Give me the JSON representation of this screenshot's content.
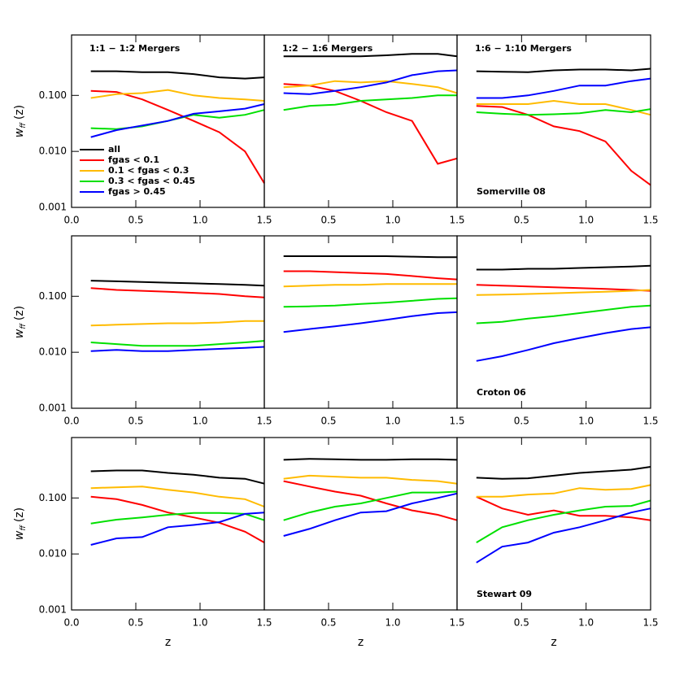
{
  "chart_data": [
    {
      "type": "line",
      "title": "1:1 − 1:2 Mergers",
      "ylabel": {
        "text": "w",
        "subscript": "ff",
        "suffix": "(z)"
      },
      "yscale": "log",
      "xlim": [
        0,
        1.5
      ],
      "ylim": [
        0.001,
        1.2
      ],
      "xticks": [
        {
          "value": 0,
          "label": "0.0"
        },
        0.5,
        {
          "value": 1,
          "label": "1.0"
        },
        1.5
      ],
      "yticks": [
        {
          "value": 0.001,
          "label": "0.001"
        },
        {
          "value": 0.01,
          "label": "0.010"
        },
        {
          "value": 0.1,
          "label": "0.100"
        }
      ],
      "legend": "lower left",
      "x": [
        0.15,
        0.35,
        0.55,
        0.75,
        0.95,
        1.15,
        1.35,
        1.5
      ],
      "series": [
        {
          "name": "all",
          "color": "#000000",
          "values": [
            0.27,
            0.27,
            0.26,
            0.26,
            0.24,
            0.21,
            0.2,
            0.21
          ]
        },
        {
          "name": "fgas < 0.1",
          "color": "#ff0000",
          "values": [
            0.12,
            0.115,
            0.085,
            0.055,
            0.035,
            0.022,
            0.01,
            0.0027
          ]
        },
        {
          "name": "0.1 < fgas < 0.3",
          "color": "#ffbb00",
          "values": [
            0.09,
            0.105,
            0.11,
            0.125,
            0.1,
            0.09,
            0.085,
            0.08
          ]
        },
        {
          "name": "0.3 < fgas < 0.45",
          "color": "#00e000",
          "values": [
            0.026,
            0.025,
            0.028,
            0.035,
            0.045,
            0.04,
            0.045,
            0.055
          ]
        },
        {
          "name": "fgas > 0.45",
          "color": "#0000ff",
          "values": [
            0.018,
            0.024,
            0.029,
            0.035,
            0.047,
            0.052,
            0.058,
            0.07
          ]
        }
      ]
    },
    {
      "type": "line",
      "title": "1:2 − 1:6 Mergers",
      "yscale": "log",
      "xlim": [
        0,
        1.5
      ],
      "ylim": [
        0.001,
        1.2
      ],
      "xticks": [
        0.5,
        {
          "value": 1,
          "label": "1.0"
        },
        1.5
      ],
      "x": [
        0.15,
        0.35,
        0.55,
        0.75,
        0.95,
        1.15,
        1.35,
        1.5
      ],
      "series": [
        {
          "color": "#000000",
          "values": [
            0.5,
            0.5,
            0.5,
            0.5,
            0.52,
            0.55,
            0.55,
            0.5
          ]
        },
        {
          "color": "#ff0000",
          "values": [
            0.16,
            0.15,
            0.12,
            0.08,
            0.05,
            0.035,
            0.006,
            0.0075
          ]
        },
        {
          "color": "#ffbb00",
          "values": [
            0.14,
            0.15,
            0.18,
            0.17,
            0.18,
            0.16,
            0.14,
            0.11
          ]
        },
        {
          "color": "#00e000",
          "values": [
            0.055,
            0.065,
            0.068,
            0.08,
            0.085,
            0.09,
            0.1,
            0.1
          ]
        },
        {
          "color": "#0000ff",
          "values": [
            0.11,
            0.105,
            0.12,
            0.14,
            0.17,
            0.23,
            0.27,
            0.28
          ]
        }
      ]
    },
    {
      "type": "line",
      "title": "1:6 − 1:10 Mergers",
      "annotation": "Somerville 08",
      "yscale": "log",
      "xlim": [
        0,
        1.5
      ],
      "ylim": [
        0.001,
        1.2
      ],
      "xticks": [
        0.5,
        {
          "value": 1,
          "label": "1.0"
        },
        1.5
      ],
      "x": [
        0.15,
        0.35,
        0.55,
        0.75,
        0.95,
        1.15,
        1.35,
        1.5
      ],
      "series": [
        {
          "color": "#000000",
          "values": [
            0.27,
            0.265,
            0.26,
            0.28,
            0.29,
            0.29,
            0.28,
            0.3
          ]
        },
        {
          "color": "#ff0000",
          "values": [
            0.065,
            0.062,
            0.045,
            0.028,
            0.023,
            0.015,
            0.0045,
            0.0025
          ]
        },
        {
          "color": "#ffbb00",
          "values": [
            0.07,
            0.07,
            0.07,
            0.08,
            0.07,
            0.07,
            0.055,
            0.045
          ]
        },
        {
          "color": "#00e000",
          "values": [
            0.05,
            0.047,
            0.045,
            0.046,
            0.048,
            0.055,
            0.05,
            0.057
          ]
        },
        {
          "color": "#0000ff",
          "values": [
            0.09,
            0.09,
            0.1,
            0.12,
            0.15,
            0.15,
            0.18,
            0.2
          ]
        }
      ]
    },
    {
      "type": "line",
      "ylabel": {
        "text": "w",
        "subscript": "ff",
        "suffix": "(z)"
      },
      "yscale": "log",
      "xlim": [
        0,
        1.5
      ],
      "ylim": [
        0.001,
        1.2
      ],
      "xticks": [
        {
          "value": 0,
          "label": "0.0"
        },
        0.5,
        {
          "value": 1,
          "label": "1.0"
        },
        1.5
      ],
      "yticks": [
        {
          "value": 0.001,
          "label": "0.001"
        },
        {
          "value": 0.01,
          "label": "0.010"
        },
        {
          "value": 0.1,
          "label": "0.100"
        }
      ],
      "x": [
        0.15,
        0.35,
        0.55,
        0.75,
        0.95,
        1.15,
        1.35,
        1.5
      ],
      "series": [
        {
          "color": "#000000",
          "values": [
            0.19,
            0.185,
            0.18,
            0.175,
            0.17,
            0.165,
            0.16,
            0.155
          ]
        },
        {
          "color": "#ff0000",
          "values": [
            0.14,
            0.13,
            0.125,
            0.12,
            0.115,
            0.11,
            0.1,
            0.095
          ]
        },
        {
          "color": "#ffbb00",
          "values": [
            0.03,
            0.031,
            0.032,
            0.033,
            0.033,
            0.034,
            0.036,
            0.036
          ]
        },
        {
          "color": "#00e000",
          "values": [
            0.015,
            0.014,
            0.013,
            0.013,
            0.013,
            0.014,
            0.015,
            0.016
          ]
        },
        {
          "color": "#0000ff",
          "values": [
            0.0105,
            0.011,
            0.0105,
            0.0105,
            0.011,
            0.0115,
            0.012,
            0.0125
          ]
        }
      ]
    },
    {
      "type": "line",
      "yscale": "log",
      "xlim": [
        0,
        1.5
      ],
      "ylim": [
        0.001,
        1.2
      ],
      "xticks": [
        0.5,
        {
          "value": 1,
          "label": "1.0"
        },
        1.5
      ],
      "x": [
        0.15,
        0.35,
        0.55,
        0.75,
        0.95,
        1.15,
        1.35,
        1.5
      ],
      "series": [
        {
          "color": "#000000",
          "values": [
            0.52,
            0.52,
            0.52,
            0.52,
            0.52,
            0.51,
            0.5,
            0.5
          ]
        },
        {
          "color": "#ff0000",
          "values": [
            0.28,
            0.28,
            0.27,
            0.26,
            0.25,
            0.23,
            0.21,
            0.2
          ]
        },
        {
          "color": "#ffbb00",
          "values": [
            0.15,
            0.155,
            0.16,
            0.16,
            0.165,
            0.165,
            0.165,
            0.165
          ]
        },
        {
          "color": "#00e000",
          "values": [
            0.065,
            0.066,
            0.068,
            0.073,
            0.077,
            0.083,
            0.09,
            0.092
          ]
        },
        {
          "color": "#0000ff",
          "values": [
            0.023,
            0.026,
            0.029,
            0.033,
            0.038,
            0.044,
            0.05,
            0.052
          ]
        }
      ]
    },
    {
      "type": "line",
      "annotation": "Croton 06",
      "yscale": "log",
      "xlim": [
        0,
        1.5
      ],
      "ylim": [
        0.001,
        1.2
      ],
      "xticks": [
        0.5,
        {
          "value": 1,
          "label": "1.0"
        },
        1.5
      ],
      "x": [
        0.15,
        0.35,
        0.55,
        0.75,
        0.95,
        1.15,
        1.35,
        1.5
      ],
      "series": [
        {
          "color": "#000000",
          "values": [
            0.3,
            0.3,
            0.31,
            0.31,
            0.32,
            0.33,
            0.34,
            0.35
          ]
        },
        {
          "color": "#ff0000",
          "values": [
            0.16,
            0.155,
            0.15,
            0.145,
            0.14,
            0.135,
            0.13,
            0.125
          ]
        },
        {
          "color": "#ffbb00",
          "values": [
            0.105,
            0.107,
            0.11,
            0.113,
            0.117,
            0.12,
            0.125,
            0.13
          ]
        },
        {
          "color": "#00e000",
          "values": [
            0.033,
            0.035,
            0.04,
            0.044,
            0.05,
            0.057,
            0.065,
            0.068
          ]
        },
        {
          "color": "#0000ff",
          "values": [
            0.007,
            0.0085,
            0.011,
            0.0145,
            0.018,
            0.022,
            0.026,
            0.028
          ]
        }
      ]
    },
    {
      "type": "line",
      "ylabel": {
        "text": "w",
        "subscript": "ff",
        "suffix": "(z)"
      },
      "xlabel": "z",
      "yscale": "log",
      "xlim": [
        0,
        1.5
      ],
      "ylim": [
        0.001,
        1.2
      ],
      "xticks": [
        {
          "value": 0,
          "label": "0.0"
        },
        0.5,
        {
          "value": 1,
          "label": "1.0"
        },
        1.5
      ],
      "yticks": [
        {
          "value": 0.001,
          "label": "0.001"
        },
        {
          "value": 0.01,
          "label": "0.010"
        },
        {
          "value": 0.1,
          "label": "0.100"
        }
      ],
      "x": [
        0.15,
        0.35,
        0.55,
        0.75,
        0.95,
        1.15,
        1.35,
        1.5
      ],
      "series": [
        {
          "color": "#000000",
          "values": [
            0.3,
            0.31,
            0.31,
            0.28,
            0.26,
            0.23,
            0.22,
            0.18
          ]
        },
        {
          "color": "#ff0000",
          "values": [
            0.105,
            0.095,
            0.075,
            0.055,
            0.045,
            0.036,
            0.025,
            0.016
          ]
        },
        {
          "color": "#ffbb00",
          "values": [
            0.15,
            0.155,
            0.16,
            0.14,
            0.125,
            0.105,
            0.095,
            0.07
          ]
        },
        {
          "color": "#00e000",
          "values": [
            0.035,
            0.041,
            0.045,
            0.05,
            0.054,
            0.054,
            0.052,
            0.04
          ]
        },
        {
          "color": "#0000ff",
          "values": [
            0.0145,
            0.019,
            0.02,
            0.03,
            0.033,
            0.037,
            0.052,
            0.055
          ]
        }
      ]
    },
    {
      "type": "line",
      "xlabel": "z",
      "yscale": "log",
      "xlim": [
        0,
        1.5
      ],
      "ylim": [
        0.001,
        1.2
      ],
      "xticks": [
        0.5,
        {
          "value": 1,
          "label": "1.0"
        },
        1.5
      ],
      "x": [
        0.15,
        0.35,
        0.55,
        0.75,
        0.95,
        1.15,
        1.35,
        1.5
      ],
      "series": [
        {
          "color": "#000000",
          "values": [
            0.48,
            0.5,
            0.49,
            0.48,
            0.48,
            0.49,
            0.49,
            0.48
          ]
        },
        {
          "color": "#ff0000",
          "values": [
            0.2,
            0.16,
            0.13,
            0.11,
            0.08,
            0.06,
            0.05,
            0.04
          ]
        },
        {
          "color": "#ffbb00",
          "values": [
            0.22,
            0.25,
            0.24,
            0.23,
            0.23,
            0.21,
            0.2,
            0.18
          ]
        },
        {
          "color": "#00e000",
          "values": [
            0.04,
            0.055,
            0.07,
            0.08,
            0.1,
            0.125,
            0.125,
            0.13
          ]
        },
        {
          "color": "#0000ff",
          "values": [
            0.021,
            0.028,
            0.04,
            0.055,
            0.058,
            0.08,
            0.1,
            0.12
          ]
        }
      ]
    },
    {
      "type": "line",
      "xlabel": "z",
      "annotation": "Stewart 09",
      "yscale": "log",
      "xlim": [
        0,
        1.5
      ],
      "ylim": [
        0.001,
        1.2
      ],
      "xticks": [
        0.5,
        {
          "value": 1,
          "label": "1.0"
        },
        1.5
      ],
      "x": [
        0.15,
        0.35,
        0.55,
        0.75,
        0.95,
        1.15,
        1.35,
        1.5
      ],
      "series": [
        {
          "color": "#000000",
          "values": [
            0.23,
            0.22,
            0.225,
            0.25,
            0.28,
            0.3,
            0.32,
            0.36
          ]
        },
        {
          "color": "#ff0000",
          "values": [
            0.105,
            0.065,
            0.05,
            0.06,
            0.048,
            0.048,
            0.045,
            0.04
          ]
        },
        {
          "color": "#ffbb00",
          "values": [
            0.105,
            0.105,
            0.115,
            0.12,
            0.15,
            0.14,
            0.145,
            0.17
          ]
        },
        {
          "color": "#00e000",
          "values": [
            0.016,
            0.03,
            0.04,
            0.05,
            0.06,
            0.07,
            0.072,
            0.09
          ]
        },
        {
          "color": "#0000ff",
          "values": [
            0.007,
            0.0135,
            0.016,
            0.024,
            0.03,
            0.04,
            0.055,
            0.065
          ]
        }
      ]
    }
  ]
}
